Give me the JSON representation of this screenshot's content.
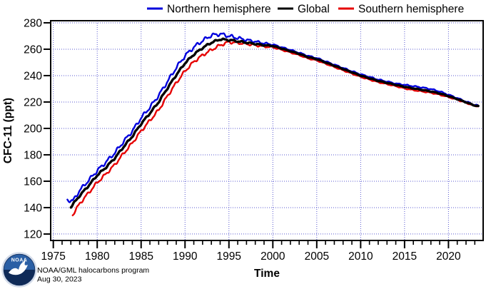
{
  "footer": {
    "program": "NOAA/GML halocarbons program",
    "date": "Aug 30, 2023",
    "logo_text": "NOAA"
  },
  "chart_data": {
    "type": "line",
    "title": "",
    "xlabel": "Time",
    "ylabel": "CFC-11 (ppt)",
    "xlim": [
      1974.7,
      2023.95
    ],
    "ylim": [
      115.1,
      281.6
    ],
    "x_ticks": [
      1975,
      1980,
      1985,
      1990,
      1995,
      2000,
      2005,
      2010,
      2015,
      2020
    ],
    "y_ticks": [
      120,
      140,
      160,
      180,
      200,
      220,
      240,
      260,
      280
    ],
    "grid": true,
    "grid_color": "#5a5ad0",
    "legend_position": "top",
    "series": [
      {
        "name": "Northern hemisphere",
        "color": "#0000dd",
        "x": [
          1976.6,
          1977.2,
          1978,
          1979,
          1980,
          1981,
          1982,
          1983,
          1984,
          1985,
          1986,
          1987,
          1988,
          1989,
          1990,
          1991,
          1992,
          1993,
          1994,
          1995,
          1996,
          1997,
          1998,
          1999,
          2000,
          2001,
          2002,
          2003,
          2004,
          2005,
          2006,
          2007,
          2008,
          2009,
          2010,
          2011,
          2012,
          2013,
          2014,
          2015,
          2016,
          2017,
          2018,
          2019,
          2020,
          2021,
          2022,
          2023,
          2023.4
        ],
        "values": [
          146,
          144.8,
          153,
          160.5,
          168,
          174.5,
          181.5,
          190,
          198,
          208,
          216,
          225,
          235.5,
          246,
          255,
          261.5,
          266.5,
          270.5,
          271.5,
          270,
          268.5,
          267,
          265.8,
          264.5,
          263.5,
          261.5,
          259.5,
          257.3,
          255,
          253.3,
          250.8,
          248.3,
          245.8,
          243.3,
          241,
          239,
          237,
          235.5,
          234,
          233,
          232,
          231,
          229.8,
          228,
          225.5,
          223,
          220.3,
          217.8,
          217.3
        ]
      },
      {
        "name": "Global",
        "color": "#000000",
        "x": [
          1977,
          1978,
          1979,
          1980,
          1981,
          1982,
          1983,
          1984,
          1985,
          1986,
          1987,
          1988,
          1989,
          1990,
          1991,
          1992,
          1993,
          1994,
          1995,
          1996,
          1997,
          1998,
          1999,
          2000,
          2001,
          2002,
          2003,
          2004,
          2005,
          2006,
          2007,
          2008,
          2009,
          2010,
          2011,
          2012,
          2013,
          2014,
          2015,
          2016,
          2017,
          2018,
          2019,
          2020,
          2021,
          2022,
          2023,
          2023.4
        ],
        "values": [
          140.5,
          149,
          156.5,
          164.5,
          170.5,
          177.5,
          186,
          194,
          203.5,
          211.5,
          220,
          230.5,
          240.5,
          249.5,
          256,
          261,
          265,
          267.5,
          267,
          266,
          265,
          264,
          263,
          262.5,
          260.5,
          258.5,
          256.5,
          254,
          252.5,
          250,
          247.5,
          245,
          242.5,
          240,
          238,
          236,
          234.5,
          233,
          231.5,
          230.3,
          229.2,
          228,
          226.5,
          224.5,
          222.2,
          219.8,
          217.3,
          217
        ]
      },
      {
        "name": "Southern hemisphere",
        "color": "#e60000",
        "x": [
          1977.2,
          1978,
          1979,
          1980,
          1981,
          1982,
          1983,
          1984,
          1985,
          1986,
          1987,
          1988,
          1989,
          1990,
          1991,
          1992,
          1993,
          1994,
          1995,
          1996,
          1997,
          1998,
          1999,
          2000,
          2001,
          2002,
          2003,
          2004,
          2005,
          2006,
          2007,
          2008,
          2009,
          2010,
          2011,
          2012,
          2013,
          2014,
          2015,
          2016,
          2017,
          2018,
          2019,
          2020,
          2021,
          2022,
          2023,
          2023.4
        ],
        "values": [
          134.5,
          143,
          151,
          159,
          165.5,
          172.5,
          181,
          189,
          198,
          206,
          214,
          224.5,
          234.5,
          243.5,
          250.5,
          255.5,
          259.5,
          263,
          265.5,
          264.8,
          264,
          263,
          262,
          261.5,
          259.5,
          257.5,
          255.5,
          253,
          251.5,
          249,
          246.5,
          244,
          241.5,
          239,
          237,
          235,
          233.5,
          232,
          230.3,
          229,
          228,
          227,
          225.5,
          223.7,
          221.7,
          219.4,
          217,
          216.8
        ]
      }
    ],
    "seasonal_cycle": {
      "amplitude_early": [
        1.1,
        0.55,
        0.9
      ],
      "amplitude_late": [
        0.35,
        0.2,
        0.3
      ],
      "phase": [
        0.05,
        0.2,
        0.55
      ]
    }
  }
}
